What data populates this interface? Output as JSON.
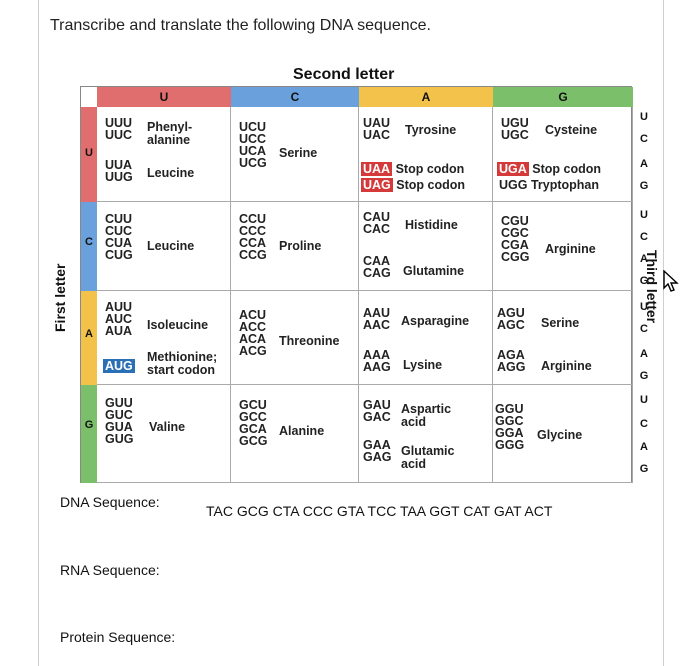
{
  "question": "Transcribe and translate the following DNA sequence.",
  "headers": {
    "second_letter": "Second letter",
    "first_letter": "First letter",
    "third_letter": "Third letter",
    "cols": [
      "U",
      "C",
      "A",
      "G"
    ],
    "rows": [
      "U",
      "C",
      "A",
      "G"
    ],
    "third_letters": [
      "U",
      "C",
      "A",
      "G",
      "U",
      "C",
      "A",
      "G",
      "U",
      "C",
      "A",
      "G",
      "U",
      "C",
      "A",
      "G"
    ]
  },
  "colors": {
    "u": "#e06e6e",
    "c": "#6aa1dc",
    "a": "#f3c24a",
    "g": "#7bbf6a",
    "stop": "#d43a3a",
    "start": "#2b6fb4"
  },
  "table": {
    "UU_codons1": "UUU\nUUC",
    "UU_aa1": "Phenyl-\nalanine",
    "UU_codons2": "UUA\nUUG",
    "UU_aa2": "Leucine",
    "UC_codons": "UCU\nUCC\nUCA\nUCG",
    "UC_aa": "Serine",
    "UA_codons1": "UAU\nUAC",
    "UA_aa1": "Tyrosine",
    "UA_stop1": "UAA",
    "UA_stop1_label": "Stop codon",
    "UA_stop2": "UAG",
    "UA_stop2_label": "Stop codon",
    "UG_codons1": "UGU\nUGC",
    "UG_aa1": "Cysteine",
    "UG_stop": "UGA",
    "UG_stop_label": "Stop codon",
    "UG_codon3": "UGG",
    "UG_aa3": "Tryptophan",
    "CU_codons": "CUU\nCUC\nCUA\nCUG",
    "CU_aa": "Leucine",
    "CC_codons": "CCU\nCCC\nCCA\nCCG",
    "CC_aa": "Proline",
    "CA_codons1": "CAU\nCAC",
    "CA_aa1": "Histidine",
    "CA_codons2": "CAA\nCAG",
    "CA_aa2": "Glutamine",
    "CG_codons": "CGU\nCGC\nCGA\nCGG",
    "CG_aa": "Arginine",
    "AU_codons": "AUU\nAUC\nAUA",
    "AU_aa": "Isoleucine",
    "AU_start": "AUG",
    "AU_start_label": "Methionine;\nstart codon",
    "AC_codons": "ACU\nACC\nACA\nACG",
    "AC_aa": "Threonine",
    "AA_codons1": "AAU\nAAC",
    "AA_aa1": "Asparagine",
    "AA_codons2": "AAA\nAAG",
    "AA_aa2": "Lysine",
    "AG_codons1": "AGU\nAGC",
    "AG_aa1": "Serine",
    "AG_codons2": "AGA\nAGG",
    "AG_aa2": "Arginine",
    "GU_codons": "GUU\nGUC\nGUA\nGUG",
    "GU_aa": "Valine",
    "GC_codons": "GCU\nGCC\nGCA\nGCG",
    "GC_aa": "Alanine",
    "GA_codons1": "GAU\nGAC",
    "GA_aa1": "Aspartic\nacid",
    "GA_codons2": "GAA\nGAG",
    "GA_aa2": "Glutamic\nacid",
    "GG_codons": "GGU\nGGC\nGGA\nGGG",
    "GG_aa": "Glycine"
  },
  "dna_label": "DNA Sequence:",
  "dna_sequence": "TAC GCG CTA CCC GTA TCC TAA GGT CAT GAT ACT",
  "rna_label": "RNA Sequence:",
  "protein_label": "Protein Sequence:"
}
